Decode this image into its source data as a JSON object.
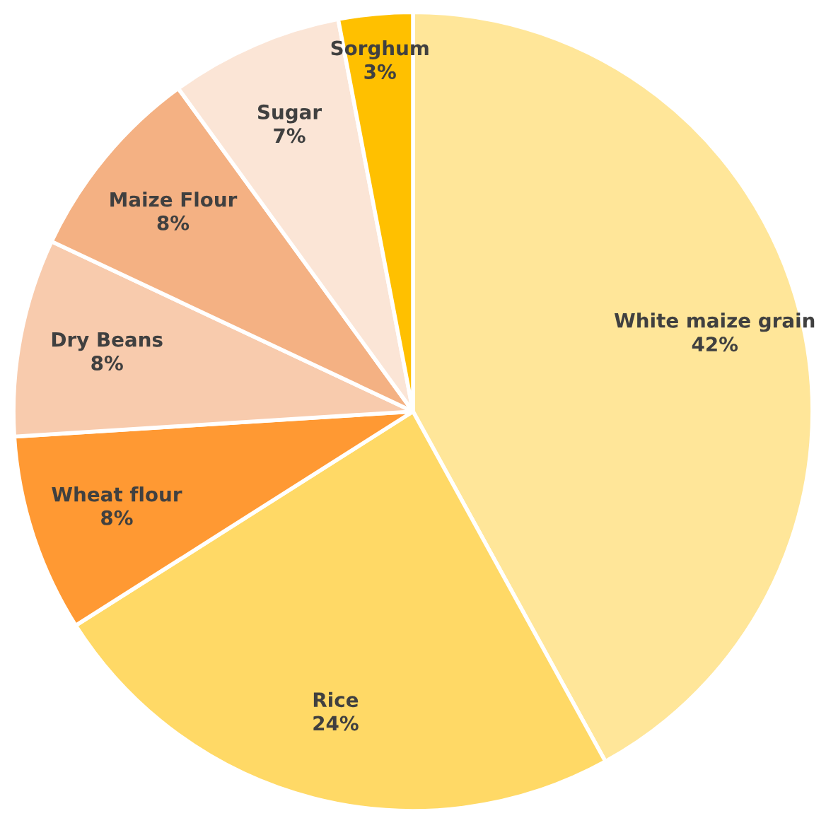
{
  "chart_data": {
    "type": "pie",
    "categories": [
      "White maize grain",
      "Rice",
      "Wheat flour",
      "Dry Beans",
      "Maize Flour",
      "Sugar",
      "Sorghum"
    ],
    "values": [
      42,
      24,
      8,
      8,
      8,
      7,
      3
    ],
    "colors": [
      "#ffe699",
      "#ffd966",
      "#ff9933",
      "#f8cbad",
      "#f4b183",
      "#fbe5d6",
      "#ffc000"
    ],
    "value_labels": [
      "42%",
      "24%",
      "8%",
      "8%",
      "8%",
      "7%",
      "3%"
    ],
    "legend": false
  }
}
